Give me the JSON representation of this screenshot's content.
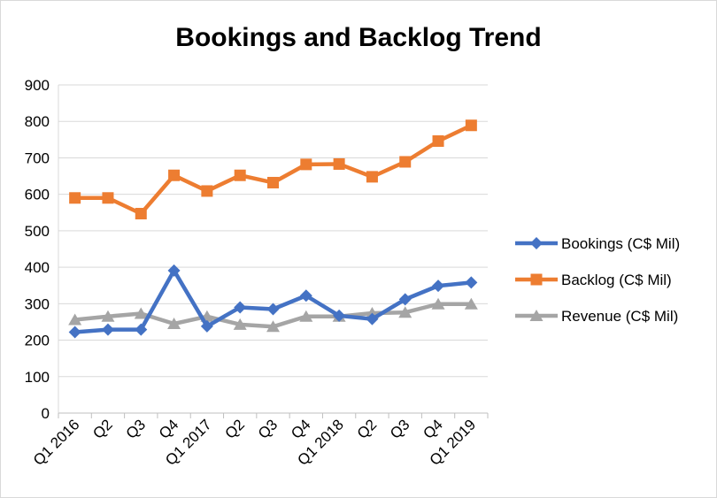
{
  "chart_data": {
    "type": "line",
    "title": "Bookings and Backlog Trend",
    "xlabel": "",
    "ylabel": "",
    "ylim": [
      0,
      900
    ],
    "yticks": [
      0,
      100,
      200,
      300,
      400,
      500,
      600,
      700,
      800,
      900
    ],
    "grid": true,
    "legend_position": "right",
    "categories": [
      "Q1 2016",
      "Q2",
      "Q3",
      "Q4",
      "Q1 2017",
      "Q2",
      "Q3",
      "Q4",
      "Q1 2018",
      "Q2",
      "Q3",
      "Q4",
      "Q1 2019"
    ],
    "series": [
      {
        "name": "Bookings (C$ Mil)",
        "color": "#4472C4",
        "marker": "diamond",
        "values": [
          222,
          229,
          229,
          391,
          238,
          290,
          285,
          322,
          267,
          258,
          312,
          349,
          358
        ]
      },
      {
        "name": "Backlog (C$ Mil)",
        "color": "#ED7D31",
        "marker": "square",
        "values": [
          590,
          590,
          547,
          652,
          609,
          652,
          632,
          682,
          683,
          648,
          689,
          746,
          789
        ]
      },
      {
        "name": "Revenue (C$ Mil)",
        "color": "#A5A5A5",
        "marker": "triangle",
        "values": [
          256,
          265,
          273,
          245,
          265,
          243,
          237,
          265,
          265,
          274,
          276,
          299,
          299
        ]
      }
    ]
  }
}
